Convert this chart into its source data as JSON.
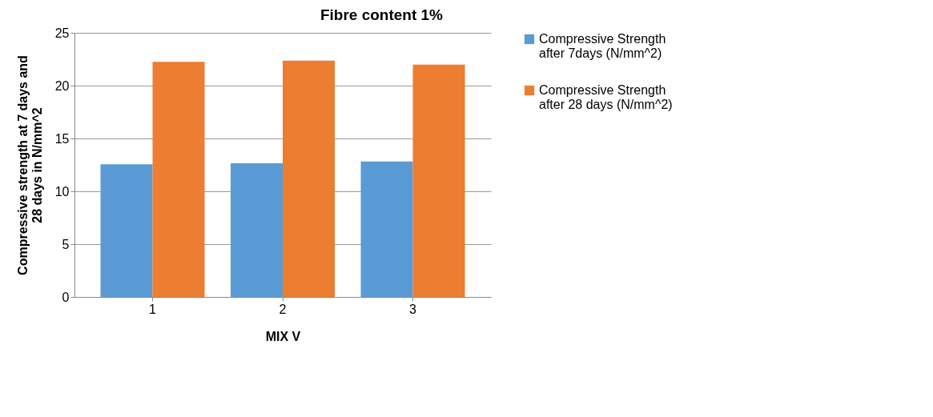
{
  "chart_data": {
    "type": "bar",
    "title": "Fibre content 1%",
    "xlabel": "MIX V",
    "ylabel": "Compressive strength at 7 days and 28 days in N/mm^2",
    "categories": [
      "1",
      "2",
      "3"
    ],
    "series": [
      {
        "name": "Compressive Strength after 7days (N/mm^2)",
        "color": "#5b9bd5",
        "values": [
          12.55,
          12.66,
          12.82
        ]
      },
      {
        "name": "Compressive Strength after 28 days (N/mm^2)",
        "color": "#ed7d31",
        "values": [
          22.25,
          22.36,
          21.98
        ]
      }
    ],
    "ylim": [
      0,
      25
    ],
    "yticks": [
      0,
      5,
      10,
      15,
      20,
      25
    ],
    "grid": "y",
    "legend": "right"
  }
}
